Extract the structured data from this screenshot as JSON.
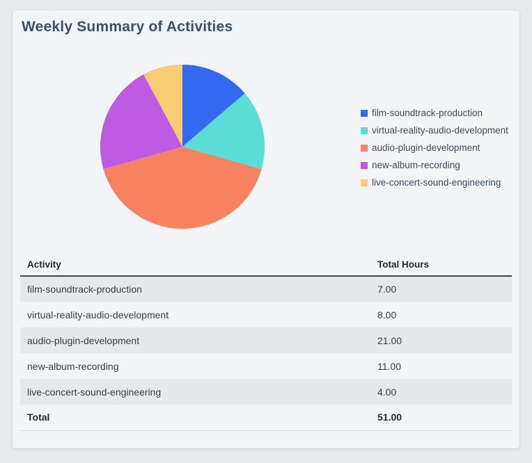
{
  "card": {
    "title": "Weekly Summary of Activities"
  },
  "chart_data": {
    "type": "pie",
    "title": "Weekly Summary of Activities",
    "legend_position": "right",
    "start_angle_deg": -90,
    "direction": "clockwise",
    "categories": [
      "film-soundtrack-production",
      "virtual-reality-audio-development",
      "audio-plugin-development",
      "new-album-recording",
      "live-concert-sound-engineering"
    ],
    "values": [
      7,
      8,
      21,
      11,
      4
    ],
    "colors": [
      "#3369F0",
      "#5BDDD6",
      "#F6825F",
      "#BF5BE0",
      "#F9CC73"
    ],
    "total": 51
  },
  "table": {
    "headers": [
      "Activity",
      "Total Hours"
    ],
    "rows": [
      {
        "activity": "film-soundtrack-production",
        "hours": "7.00"
      },
      {
        "activity": "virtual-reality-audio-development",
        "hours": "8.00"
      },
      {
        "activity": "audio-plugin-development",
        "hours": "21.00"
      },
      {
        "activity": "new-album-recording",
        "hours": "11.00"
      },
      {
        "activity": "live-concert-sound-engineering",
        "hours": "4.00"
      }
    ],
    "total_row": {
      "label": "Total",
      "hours": "51.00"
    }
  },
  "colors": {
    "page_bg": "#e9eaec",
    "card_bg": "#f3f4f6",
    "row_alt_bg": "#e7e8ea",
    "title_text": "#3a516b",
    "legend_text": "#3f4a59",
    "header_text": "#24292e",
    "cell_text": "#383d43",
    "header_border": "#3f4347",
    "total_border": "#d7d9db"
  }
}
